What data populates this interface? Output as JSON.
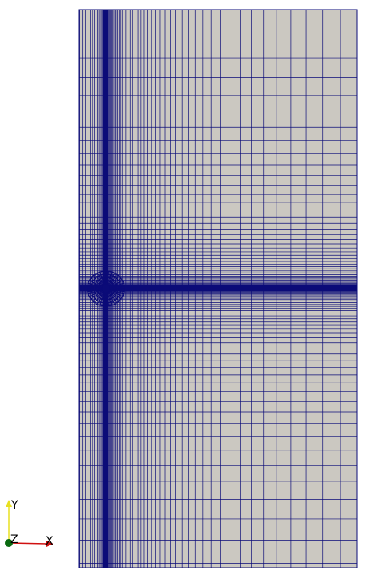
{
  "axes": {
    "y": "Y",
    "z": "Z",
    "x": "X"
  }
}
